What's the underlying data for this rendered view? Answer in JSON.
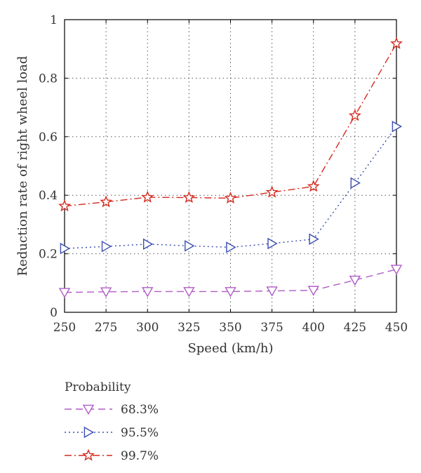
{
  "chart_data": {
    "type": "line",
    "xlabel": "Speed (km/h)",
    "ylabel": "Reduction rate of right wheel load",
    "x": [
      250,
      275,
      300,
      325,
      350,
      375,
      400,
      425,
      450
    ],
    "xlim": [
      250,
      450
    ],
    "ylim": [
      0,
      1
    ],
    "xticks": [
      "250",
      "275",
      "300",
      "325",
      "350",
      "375",
      "400",
      "425",
      "450"
    ],
    "yticks": [
      "0",
      "0.2",
      "0.4",
      "0.6",
      "0.8",
      "1"
    ],
    "grid": true,
    "legend_title": "Probability",
    "legend_position": "below",
    "series": [
      {
        "name": "68.3%",
        "marker": "triangle-down",
        "linestyle": "dashed",
        "color": "#b05cc6",
        "values": [
          0.068,
          0.07,
          0.071,
          0.071,
          0.071,
          0.073,
          0.075,
          0.11,
          0.147
        ]
      },
      {
        "name": "95.5%",
        "marker": "triangle-right",
        "linestyle": "dotted",
        "color": "#3a4fb0",
        "values": [
          0.218,
          0.225,
          0.233,
          0.227,
          0.222,
          0.235,
          0.25,
          0.442,
          0.635
        ]
      },
      {
        "name": "99.7%",
        "marker": "star",
        "linestyle": "dashdot",
        "color": "#d42a1f",
        "values": [
          0.363,
          0.377,
          0.393,
          0.392,
          0.39,
          0.41,
          0.43,
          0.672,
          0.918
        ]
      }
    ]
  }
}
